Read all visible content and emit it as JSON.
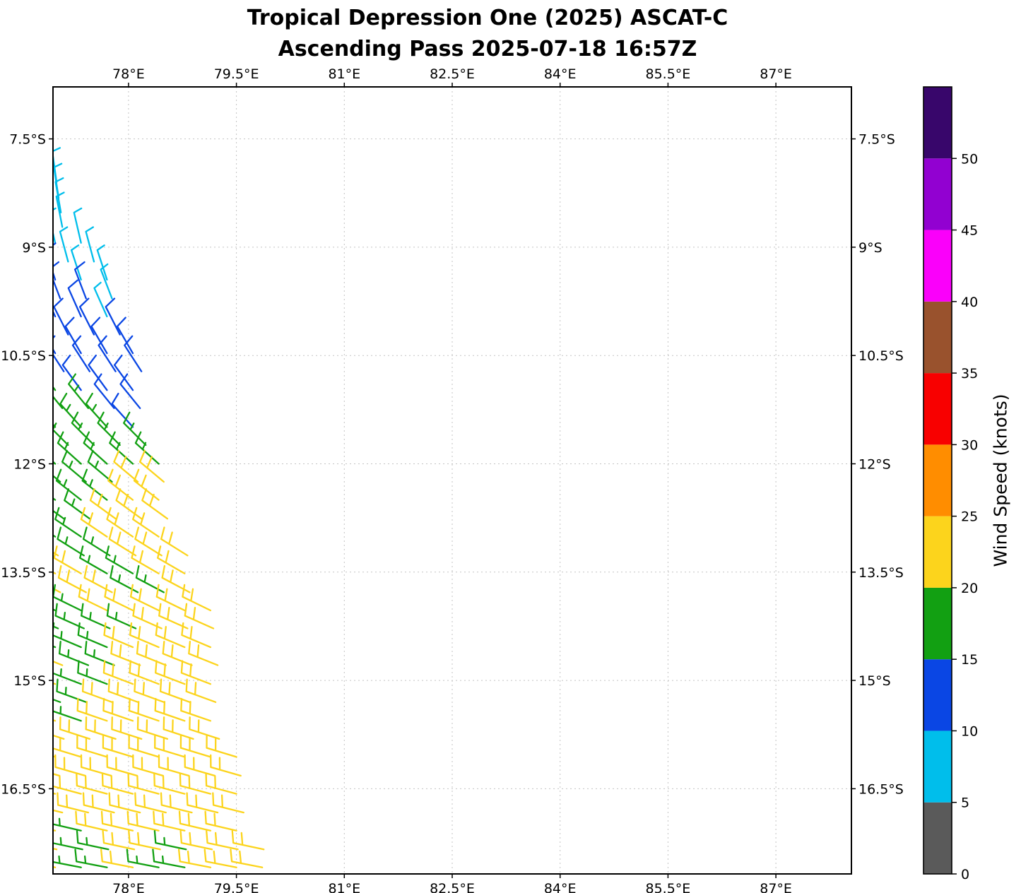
{
  "chart_data": {
    "type": "scatter",
    "subtype": "wind-barbs",
    "title": "Tropical Depression One (2025) ASCAT-C",
    "subtitle": "Ascending Pass 2025-07-18 16:57Z",
    "xlabel": "",
    "ylabel": "",
    "grid": "dashed",
    "legend_position": "none",
    "axes": {
      "x": {
        "unit": "degrees_east",
        "min": 76.95,
        "max": 88.05,
        "ticks": [
          {
            "v": 78.0,
            "label": "78°E"
          },
          {
            "v": 79.5,
            "label": "79.5°E"
          },
          {
            "v": 81.0,
            "label": "81°E"
          },
          {
            "v": 82.5,
            "label": "82.5°E"
          },
          {
            "v": 84.0,
            "label": "84°E"
          },
          {
            "v": 85.5,
            "label": "85.5°E"
          },
          {
            "v": 87.0,
            "label": "87°E"
          }
        ]
      },
      "y": {
        "unit": "degrees_south",
        "min": 6.78,
        "max": 17.68,
        "south_increases_downward": true,
        "ticks": [
          {
            "v": 7.5,
            "label": "7.5°S"
          },
          {
            "v": 9.0,
            "label": "9°S"
          },
          {
            "v": 10.5,
            "label": "10.5°S"
          },
          {
            "v": 12.0,
            "label": "12°S"
          },
          {
            "v": 13.5,
            "label": "13.5°S"
          },
          {
            "v": 15.0,
            "label": "15°S"
          },
          {
            "v": 16.5,
            "label": "16.5°S"
          }
        ]
      }
    },
    "colorbar": {
      "label": "Wind Speed (knots)",
      "min": 0,
      "max": 55,
      "ticks": [
        {
          "v": 0,
          "label": "0"
        },
        {
          "v": 5,
          "label": "5"
        },
        {
          "v": 10,
          "label": "10"
        },
        {
          "v": 15,
          "label": "15"
        },
        {
          "v": 20,
          "label": "20"
        },
        {
          "v": 25,
          "label": "25"
        },
        {
          "v": 30,
          "label": "30"
        },
        {
          "v": 35,
          "label": "35"
        },
        {
          "v": 40,
          "label": "40"
        },
        {
          "v": 45,
          "label": "45"
        },
        {
          "v": 50,
          "label": "50"
        }
      ],
      "segments": [
        {
          "from": 0,
          "to": 5,
          "color": "#5A5A5A"
        },
        {
          "from": 5,
          "to": 10,
          "color": "#00BEEB"
        },
        {
          "from": 10,
          "to": 15,
          "color": "#0A46E4"
        },
        {
          "from": 15,
          "to": 20,
          "color": "#12A012"
        },
        {
          "from": 20,
          "to": 25,
          "color": "#FCD41C"
        },
        {
          "from": 25,
          "to": 30,
          "color": "#FF8D00"
        },
        {
          "from": 30,
          "to": 35,
          "color": "#F80000"
        },
        {
          "from": 35,
          "to": 40,
          "color": "#99522D"
        },
        {
          "from": 40,
          "to": 45,
          "color": "#FA00FA"
        },
        {
          "from": 45,
          "to": 50,
          "color": "#9201D1"
        },
        {
          "from": 50,
          "to": 55,
          "color": "#38066B"
        }
      ]
    },
    "barbs": {
      "speed_unit": "knots",
      "dir_convention": "meteorological_from_degrees",
      "dlon": 0.36,
      "rows": [
        {
          "lat": 8.1,
          "lon0": 77.0,
          "dir": 352,
          "speeds": [
            8
          ]
        },
        {
          "lat": 8.32,
          "lon0": 77.03,
          "dir": 351,
          "speeds": [
            8
          ]
        },
        {
          "lat": 8.52,
          "lon0": 77.06,
          "dir": 350,
          "speeds": [
            8
          ]
        },
        {
          "lat": 8.72,
          "lon0": 77.08,
          "dir": 349,
          "speeds": [
            8
          ]
        },
        {
          "lat": 8.94,
          "lon0": 76.98,
          "dir": 347,
          "speeds": [
            8,
            8
          ]
        },
        {
          "lat": 9.2,
          "lon0": 77.16,
          "dir": 345,
          "speeds": [
            8,
            8
          ]
        },
        {
          "lat": 9.45,
          "lon0": 76.98,
          "dir": 342,
          "speeds": [
            13,
            8,
            8
          ]
        },
        {
          "lat": 9.71,
          "lon0": 77.05,
          "dir": 339,
          "speeds": [
            13,
            13,
            8
          ]
        },
        {
          "lat": 9.96,
          "lon0": 76.98,
          "dir": 336,
          "speeds": [
            13,
            13,
            8
          ]
        },
        {
          "lat": 10.21,
          "lon0": 77.16,
          "dir": 333,
          "speeds": [
            13,
            13,
            13
          ]
        },
        {
          "lat": 10.47,
          "lon0": 76.98,
          "dir": 330,
          "speeds": [
            13,
            13,
            13,
            13
          ]
        },
        {
          "lat": 10.72,
          "lon0": 77.1,
          "dir": 327,
          "speeds": [
            13,
            13,
            13,
            13
          ]
        },
        {
          "lat": 10.98,
          "lon0": 76.98,
          "dir": 324,
          "speeds": [
            17,
            13,
            13,
            13
          ]
        },
        {
          "lat": 11.23,
          "lon0": 77.08,
          "dir": 321,
          "speeds": [
            17,
            17,
            13,
            13
          ]
        },
        {
          "lat": 11.49,
          "lon0": 76.98,
          "dir": 318,
          "speeds": [
            17,
            17,
            17,
            13
          ]
        },
        {
          "lat": 11.74,
          "lon0": 77.16,
          "dir": 315,
          "speeds": [
            17,
            17,
            17,
            17
          ]
        },
        {
          "lat": 12.0,
          "lon0": 76.98,
          "dir": 312,
          "speeds": [
            17,
            17,
            17,
            17,
            17
          ]
        },
        {
          "lat": 12.25,
          "lon0": 77.05,
          "dir": 310,
          "speeds": [
            17,
            17,
            17,
            22,
            22
          ]
        },
        {
          "lat": 12.5,
          "lon0": 76.98,
          "dir": 308,
          "speeds": [
            17,
            17,
            17,
            22,
            22
          ]
        },
        {
          "lat": 12.76,
          "lon0": 77.1,
          "dir": 306,
          "speeds": [
            17,
            17,
            22,
            22,
            22
          ]
        },
        {
          "lat": 13.01,
          "lon0": 76.98,
          "dir": 304,
          "speeds": [
            17,
            17,
            22,
            22,
            22
          ]
        },
        {
          "lat": 13.27,
          "lon0": 77.02,
          "dir": 302,
          "speeds": [
            22,
            17,
            17,
            22,
            22,
            22
          ]
        },
        {
          "lat": 13.52,
          "lon0": 76.98,
          "dir": 300,
          "speeds": [
            22,
            22,
            17,
            17,
            22,
            22
          ]
        },
        {
          "lat": 13.78,
          "lon0": 77.05,
          "dir": 298,
          "speeds": [
            22,
            22,
            22,
            17,
            17,
            22
          ]
        },
        {
          "lat": 14.03,
          "lon0": 76.98,
          "dir": 296,
          "speeds": [
            17,
            17,
            22,
            22,
            22,
            22,
            22
          ]
        },
        {
          "lat": 14.28,
          "lon0": 77.02,
          "dir": 294,
          "speeds": [
            17,
            17,
            17,
            17,
            22,
            22,
            22
          ]
        },
        {
          "lat": 14.54,
          "lon0": 76.98,
          "dir": 293,
          "speeds": [
            17,
            17,
            17,
            22,
            22,
            22,
            22
          ]
        },
        {
          "lat": 14.79,
          "lon0": 77.08,
          "dir": 292,
          "speeds": [
            22,
            17,
            17,
            22,
            22,
            22,
            22
          ]
        },
        {
          "lat": 15.05,
          "lon0": 76.98,
          "dir": 291,
          "speeds": [
            22,
            17,
            17,
            22,
            22,
            22,
            22
          ]
        },
        {
          "lat": 15.3,
          "lon0": 77.05,
          "dir": 290,
          "speeds": [
            17,
            17,
            22,
            22,
            22,
            22,
            22
          ]
        },
        {
          "lat": 15.56,
          "lon0": 76.98,
          "dir": 289,
          "speeds": [
            22,
            17,
            22,
            22,
            22,
            22,
            22
          ]
        },
        {
          "lat": 15.81,
          "lon0": 77.1,
          "dir": 288,
          "speeds": [
            22,
            22,
            22,
            22,
            22,
            22,
            22
          ]
        },
        {
          "lat": 16.06,
          "lon0": 76.98,
          "dir": 287,
          "speeds": [
            22,
            22,
            22,
            22,
            22,
            22,
            22,
            22
          ]
        },
        {
          "lat": 16.32,
          "lon0": 77.04,
          "dir": 286,
          "speeds": [
            22,
            22,
            22,
            22,
            22,
            22,
            22,
            22
          ]
        },
        {
          "lat": 16.57,
          "lon0": 76.98,
          "dir": 285,
          "speeds": [
            22,
            22,
            22,
            22,
            22,
            22,
            22,
            22
          ]
        },
        {
          "lat": 16.83,
          "lon0": 77.08,
          "dir": 284,
          "speeds": [
            22,
            22,
            22,
            22,
            22,
            22,
            22,
            22
          ]
        },
        {
          "lat": 17.08,
          "lon0": 76.98,
          "dir": 283,
          "speeds": [
            22,
            17,
            22,
            22,
            22,
            22,
            22,
            22
          ]
        },
        {
          "lat": 17.34,
          "lon0": 77.0,
          "dir": 282,
          "speeds": [
            22,
            17,
            17,
            22,
            22,
            17,
            22,
            22,
            22
          ]
        },
        {
          "lat": 17.59,
          "lon0": 76.98,
          "dir": 281,
          "speeds": [
            22,
            17,
            17,
            22,
            17,
            17,
            22,
            22,
            22
          ]
        }
      ]
    }
  }
}
